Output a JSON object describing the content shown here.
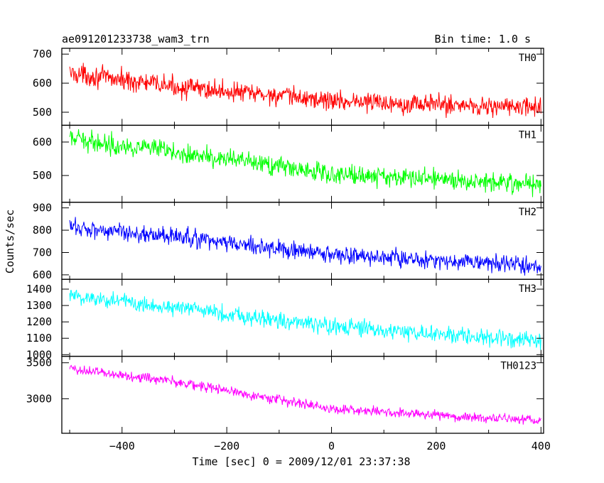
{
  "chart_data": {
    "type": "line",
    "title": "ae091201233738_wam3_trn",
    "bin_time_label": "Bin time: 1.0 s",
    "xlabel": "Time [sec] 0 = 2009/12/01 23:37:38",
    "ylabel": "Counts/sec",
    "xlim": [
      -515,
      405
    ],
    "x_ticks": [
      -400,
      -200,
      0,
      200,
      400
    ],
    "x_tick_labels": [
      "−400",
      "−200",
      "0",
      "200",
      "400"
    ],
    "x_start": -500,
    "x_end": 400,
    "x_step": 1,
    "grid": false,
    "panels": [
      {
        "name": "TH0",
        "color": "#ff0000",
        "ylim": [
          455,
          720
        ],
        "y_ticks": [
          500,
          600,
          700
        ],
        "trend": [
          [
            -500,
            635
          ],
          [
            -300,
            588
          ],
          [
            0,
            540
          ],
          [
            400,
            515
          ]
        ],
        "noise": 30
      },
      {
        "name": "TH1",
        "color": "#00ff00",
        "ylim": [
          420,
          650
        ],
        "y_ticks": [
          500,
          600
        ],
        "trend": [
          [
            -500,
            610
          ],
          [
            -300,
            570
          ],
          [
            0,
            505
          ],
          [
            400,
            475
          ]
        ],
        "noise": 25
      },
      {
        "name": "TH2",
        "color": "#0000ff",
        "ylim": [
          580,
          925
        ],
        "y_ticks": [
          600,
          700,
          800,
          900
        ],
        "trend": [
          [
            -500,
            815
          ],
          [
            -300,
            770
          ],
          [
            0,
            690
          ],
          [
            400,
            640
          ]
        ],
        "noise": 35
      },
      {
        "name": "TH3",
        "color": "#00ffff",
        "ylim": [
          990,
          1460
        ],
        "y_ticks": [
          1000,
          1100,
          1200,
          1300,
          1400
        ],
        "trend": [
          [
            -500,
            1360
          ],
          [
            -300,
            1290
          ],
          [
            0,
            1170
          ],
          [
            400,
            1080
          ]
        ],
        "noise": 45
      },
      {
        "name": "TH0123",
        "color": "#ff00ff",
        "ylim": [
          2520,
          3590
        ],
        "y_ticks": [
          3000,
          3500
        ],
        "trend": [
          [
            -500,
            3420
          ],
          [
            -300,
            3240
          ],
          [
            0,
            2860
          ],
          [
            400,
            2690
          ]
        ],
        "noise": 60
      }
    ]
  }
}
